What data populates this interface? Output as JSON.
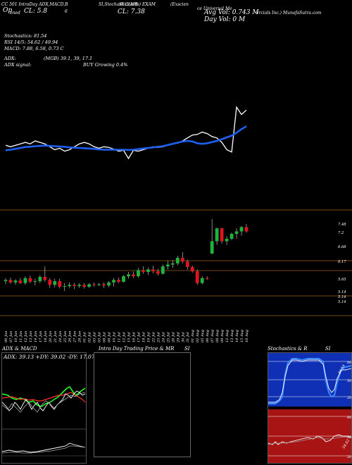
{
  "header": {
    "line1": [
      {
        "text": "CC 501 IntraDay ADX,MACD,B"
      },
      {
        "text": "SI,Stochastics,MR"
      },
      {
        "text": "SI Charts) EXAM"
      },
      {
        "text": "(Exscien"
      },
      {
        "text": "ce Universal Me"
      },
      {
        "text": "ercials Inc.) MunafaSutra.com"
      }
    ],
    "open_label": "Op",
    "open_label_sub": "ened",
    "close_left": "CL: 5.8",
    "close_left_extra": "6",
    "close_mid": "CL: 7.38",
    "avg_vol": "Avg Vol: 0.743 M",
    "day_vol": "Day Vol: 0   M",
    "stoch": "Stochastics: 81.54",
    "rsi": "RSI 14/5: 54.62 / 49.94",
    "macd": "MACD: 7.88, 6.58, 0.73 C",
    "adx": "ADX:",
    "adx_vals": "(MGB) 39.1,  39,  17.1",
    "adx_signal": "ADX  signal:",
    "adx_signal_val": "BUY Growing 0.4%"
  },
  "price_axis": [
    "7.48",
    "7.2",
    "6.68",
    "6.17",
    "5.65",
    "5.14",
    "5.14",
    "5.14"
  ],
  "dates": [
    "06 Jun",
    "07 Jun",
    "10 Jun",
    "11 Jun",
    "12 Jun",
    "13 Jun",
    "14 Jun",
    "17 Jun",
    "18 Jun",
    "20 Jun",
    "21 Jun",
    "24 Jun",
    "25 Jun",
    "26 Jun",
    "27 Jun",
    "28 Jun",
    "01 Jul",
    "02 Jul",
    "03 Jul",
    "05 Jul",
    "08 Jul",
    "09 Jul",
    "10 Jul",
    "11 Jul",
    "12 Jul",
    "15 Jul",
    "16 Jul",
    "17 Jul",
    "18 Jul",
    "19 Jul",
    "22 Jul",
    "23 Jul",
    "24 Jul",
    "25 Jul",
    "26 Jul",
    "29 Jul",
    "30 Jul",
    "31 Jul",
    "01 Aug",
    "02 Aug",
    "05 Aug",
    "06 Aug",
    "07 Aug",
    "08 Aug",
    "09 Aug",
    "12 Aug",
    "13 Aug",
    "14 Aug",
    "15 Aug",
    "16 Aug"
  ],
  "panels": {
    "adx_title": "ADX  & MACD",
    "adx_stats": "ADX: 39.13  +DY: 39.02  -DY: 17.07",
    "intraday_title": "Intra  Day Trading Price  & MR",
    "intraday_si": "SI",
    "stoch_title": "Stochastics & R",
    "stoch_si": "SI",
    "stoch_ticks": [
      "80",
      "50",
      "20"
    ],
    "stoch_value": "81.54",
    "rsi_ticks": [
      "80",
      "50",
      "20"
    ],
    "rsi_value": "54.62"
  },
  "colors": {
    "background": "#000000",
    "ma_line": "#1f5ff0",
    "candle_up": "#1fb33a",
    "candle_down": "#e0141e",
    "level_line": "#a06018",
    "adx_green": "#22ff22",
    "adx_red": "#ff3030",
    "stoch_bg": "#0f2fb4",
    "rsi_bg": "#a81414"
  },
  "chart_data": {
    "type": "line",
    "x": [
      "06 Jun",
      "07 Jun",
      "10 Jun",
      "11 Jun",
      "12 Jun",
      "13 Jun",
      "14 Jun",
      "17 Jun",
      "18 Jun",
      "20 Jun",
      "21 Jun",
      "24 Jun",
      "25 Jun",
      "26 Jun",
      "27 Jun",
      "28 Jun",
      "01 Jul",
      "02 Jul",
      "03 Jul",
      "05 Jul",
      "08 Jul",
      "09 Jul",
      "10 Jul",
      "11 Jul",
      "12 Jul",
      "15 Jul",
      "16 Jul",
      "17 Jul",
      "18 Jul",
      "19 Jul",
      "22 Jul",
      "23 Jul",
      "24 Jul",
      "25 Jul",
      "26 Jul",
      "29 Jul",
      "30 Jul",
      "31 Jul",
      "01 Aug",
      "02 Aug",
      "05 Aug",
      "06 Aug",
      "07 Aug",
      "08 Aug",
      "09 Aug",
      "12 Aug",
      "13 Aug",
      "14 Aug",
      "15 Aug",
      "16 Aug"
    ],
    "candles": [
      [
        5.62,
        5.72,
        5.52,
        5.66
      ],
      [
        5.66,
        5.74,
        5.54,
        5.58
      ],
      [
        5.58,
        5.68,
        5.5,
        5.64
      ],
      [
        5.64,
        5.72,
        5.52,
        5.56
      ],
      [
        5.56,
        5.78,
        5.5,
        5.72
      ],
      [
        5.72,
        5.8,
        5.56,
        5.6
      ],
      [
        5.6,
        5.7,
        5.48,
        5.62
      ],
      [
        5.62,
        5.82,
        5.56,
        5.76
      ],
      [
        5.76,
        6.1,
        5.6,
        5.66
      ],
      [
        5.66,
        5.72,
        5.4,
        5.5
      ],
      [
        5.5,
        5.7,
        5.42,
        5.62
      ],
      [
        5.62,
        5.7,
        5.38,
        5.44
      ],
      [
        5.44,
        5.56,
        5.3,
        5.46
      ],
      [
        5.46,
        5.58,
        5.4,
        5.5
      ],
      [
        5.5,
        5.56,
        5.36,
        5.46
      ],
      [
        5.46,
        5.56,
        5.4,
        5.5
      ],
      [
        5.5,
        5.56,
        5.38,
        5.44
      ],
      [
        5.44,
        5.56,
        5.4,
        5.52
      ],
      [
        5.52,
        5.58,
        5.44,
        5.5
      ],
      [
        5.5,
        5.56,
        5.46,
        5.52
      ],
      [
        5.52,
        5.58,
        5.4,
        5.48
      ],
      [
        5.48,
        5.62,
        5.42,
        5.58
      ],
      [
        5.58,
        5.72,
        5.44,
        5.66
      ],
      [
        5.66,
        5.74,
        5.56,
        5.6
      ],
      [
        5.6,
        5.82,
        5.58,
        5.78
      ],
      [
        5.78,
        5.92,
        5.7,
        5.84
      ],
      [
        5.84,
        5.94,
        5.72,
        5.78
      ],
      [
        5.78,
        6.05,
        5.74,
        5.98
      ],
      [
        5.98,
        6.1,
        5.86,
        5.92
      ],
      [
        5.92,
        6.06,
        5.82,
        6.0
      ],
      [
        6.0,
        6.12,
        5.88,
        5.94
      ],
      [
        5.94,
        6.02,
        5.8,
        5.86
      ],
      [
        5.86,
        6.16,
        5.84,
        6.1
      ],
      [
        6.1,
        6.28,
        6.0,
        6.16
      ],
      [
        6.16,
        6.3,
        6.06,
        6.2
      ],
      [
        6.2,
        6.44,
        6.14,
        6.38
      ],
      [
        6.38,
        6.56,
        6.2,
        6.26
      ],
      [
        6.26,
        6.32,
        6.0,
        6.08
      ],
      [
        6.08,
        6.12,
        5.9,
        5.94
      ],
      [
        5.94,
        6.0,
        5.5,
        5.56
      ],
      [
        5.56,
        5.78,
        5.52,
        5.72
      ],
      [
        5.72,
        5.78,
        5.66,
        5.7
      ],
      [
        6.52,
        7.64,
        6.5,
        6.92
      ],
      [
        6.92,
        7.36,
        6.8,
        7.34
      ],
      [
        7.34,
        7.36,
        6.84,
        6.92
      ],
      [
        6.92,
        7.08,
        6.8,
        7.0
      ],
      [
        7.0,
        7.2,
        6.96,
        7.16
      ],
      [
        7.16,
        7.34,
        7.0,
        7.24
      ],
      [
        7.24,
        7.42,
        7.1,
        7.38
      ],
      [
        7.38,
        7.48,
        7.2,
        7.24
      ]
    ],
    "price_line": [
      5.75,
      5.7,
      5.75,
      5.8,
      5.85,
      5.8,
      5.9,
      5.85,
      5.8,
      5.7,
      5.6,
      5.65,
      5.55,
      5.6,
      5.7,
      5.8,
      5.85,
      5.8,
      5.7,
      5.65,
      5.7,
      5.68,
      5.62,
      5.55,
      5.58,
      5.3,
      5.58,
      5.55,
      5.6,
      5.65,
      5.7,
      5.68,
      5.7,
      5.75,
      5.8,
      5.82,
      5.9,
      6.0,
      6.1,
      6.12,
      6.2,
      6.15,
      6.05,
      6.0,
      5.85,
      5.6,
      5.52,
      7.05,
      6.8,
      6.95
    ],
    "ma_line": [
      5.58,
      5.6,
      5.63,
      5.66,
      5.69,
      5.7,
      5.72,
      5.73,
      5.74,
      5.73,
      5.72,
      5.71,
      5.7,
      5.68,
      5.67,
      5.66,
      5.65,
      5.64,
      5.63,
      5.61,
      5.6,
      5.6,
      5.6,
      5.6,
      5.6,
      5.59,
      5.6,
      5.62,
      5.64,
      5.66,
      5.68,
      5.7,
      5.72,
      5.76,
      5.8,
      5.84,
      5.88,
      5.9,
      5.88,
      5.82,
      5.8,
      5.82,
      5.86,
      5.9,
      5.96,
      6.02,
      6.08,
      6.18,
      6.3,
      6.4
    ],
    "ylim": [
      5.14,
      7.48
    ]
  }
}
